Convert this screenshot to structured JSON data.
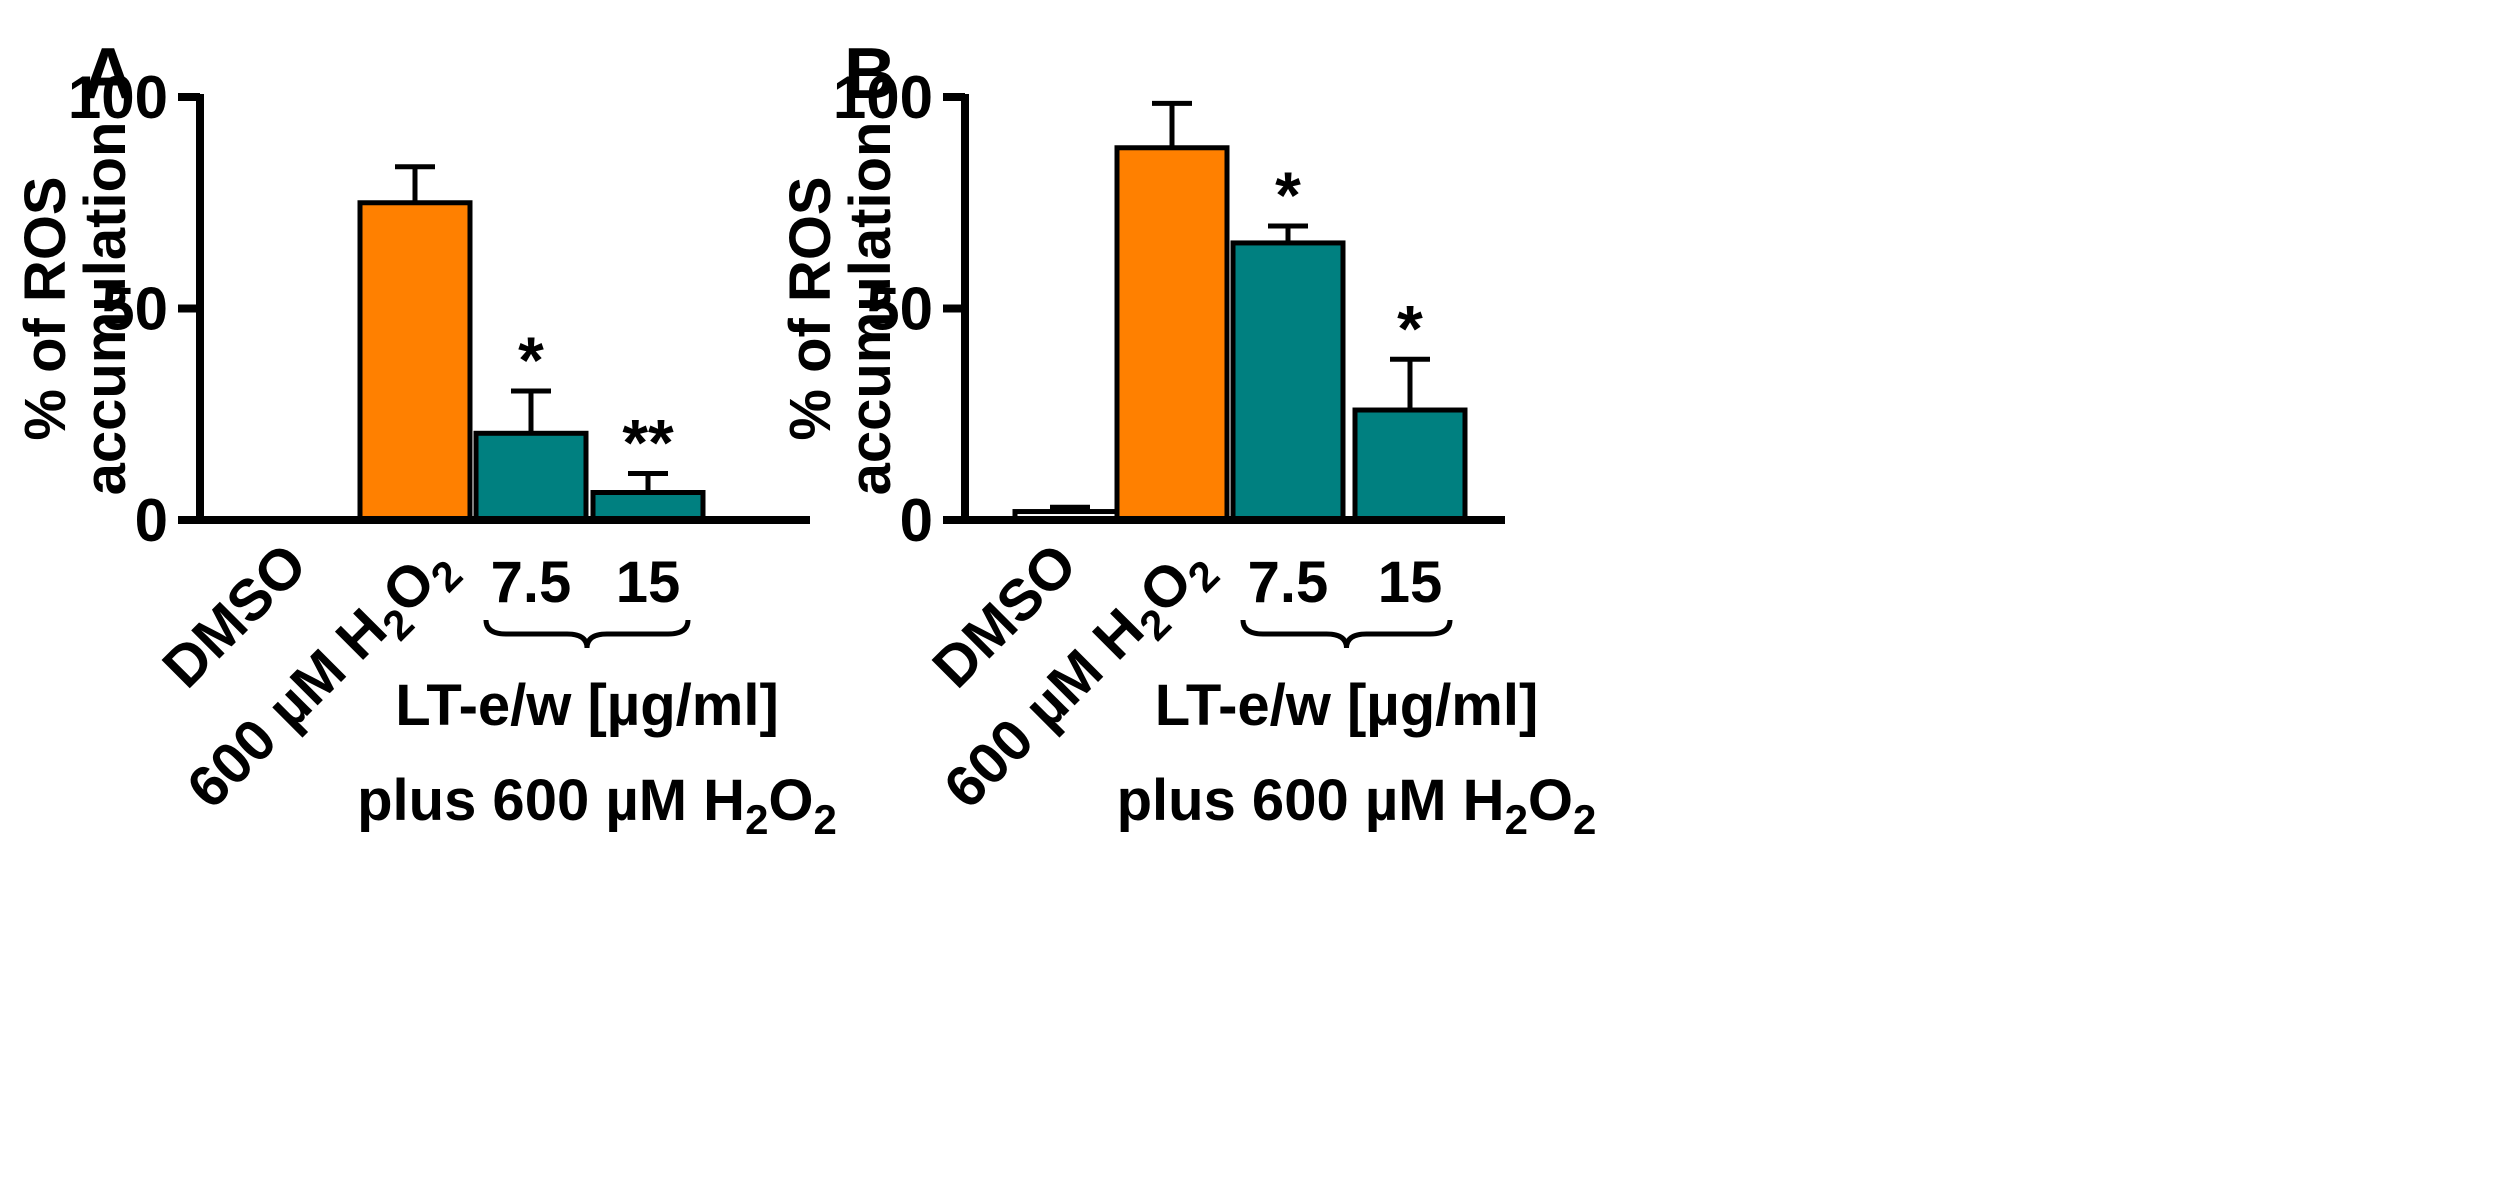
{
  "chart_data": [
    {
      "type": "bar",
      "panel": "A",
      "ylabel_lines": [
        "% of ROS",
        "accumulation"
      ],
      "ylim": [
        0,
        100
      ],
      "yticks": [
        "0",
        "50",
        "100"
      ],
      "ytick_values": [
        0,
        50,
        100
      ],
      "categories": [
        "DMSO",
        "600 µM H2O2",
        "7.5",
        "15"
      ],
      "category_labels": [
        {
          "text": "DMSO"
        },
        {
          "text": "600 µM H",
          "sub1": "2",
          "mid": "O",
          "sub2": "2"
        },
        {
          "text": "7.5"
        },
        {
          "text": "15"
        }
      ],
      "values": [
        0,
        75,
        20.5,
        6.5
      ],
      "errors": [
        0,
        8.5,
        10,
        4.5
      ],
      "significance": [
        "",
        "",
        "*",
        "**"
      ],
      "colors": [
        "#ffffff",
        "#ff8000",
        "#008080",
        "#008080"
      ],
      "group_label": {
        "line1": "LT-e/w [µg/ml]",
        "line2_main": "plus 600 µM H",
        "line2_sub1": "2",
        "line2_mid": "O",
        "line2_sub2": "2"
      }
    },
    {
      "type": "bar",
      "panel": "B",
      "ylabel_lines": [
        "% of ROS",
        "accumulation"
      ],
      "ylim": [
        0,
        100
      ],
      "yticks": [
        "0",
        "50",
        "100"
      ],
      "ytick_values": [
        0,
        50,
        100
      ],
      "categories": [
        "DMSO",
        "600 µM H2O2",
        "7.5",
        "15"
      ],
      "category_labels": [
        {
          "text": "DMSO"
        },
        {
          "text": "600 µM H",
          "sub1": "2",
          "mid": "O",
          "sub2": "2"
        },
        {
          "text": "7.5"
        },
        {
          "text": "15"
        }
      ],
      "values": [
        2,
        88,
        65.5,
        26
      ],
      "errors": [
        1,
        10.5,
        4,
        12
      ],
      "significance": [
        "",
        "",
        "*",
        "*"
      ],
      "colors": [
        "#ffffff",
        "#ff8000",
        "#008080",
        "#008080"
      ],
      "group_label": {
        "line1": "LT-e/w [µg/ml]",
        "line2_main": "plus 600 µM H",
        "line2_sub1": "2",
        "line2_mid": "O",
        "line2_sub2": "2"
      }
    }
  ]
}
